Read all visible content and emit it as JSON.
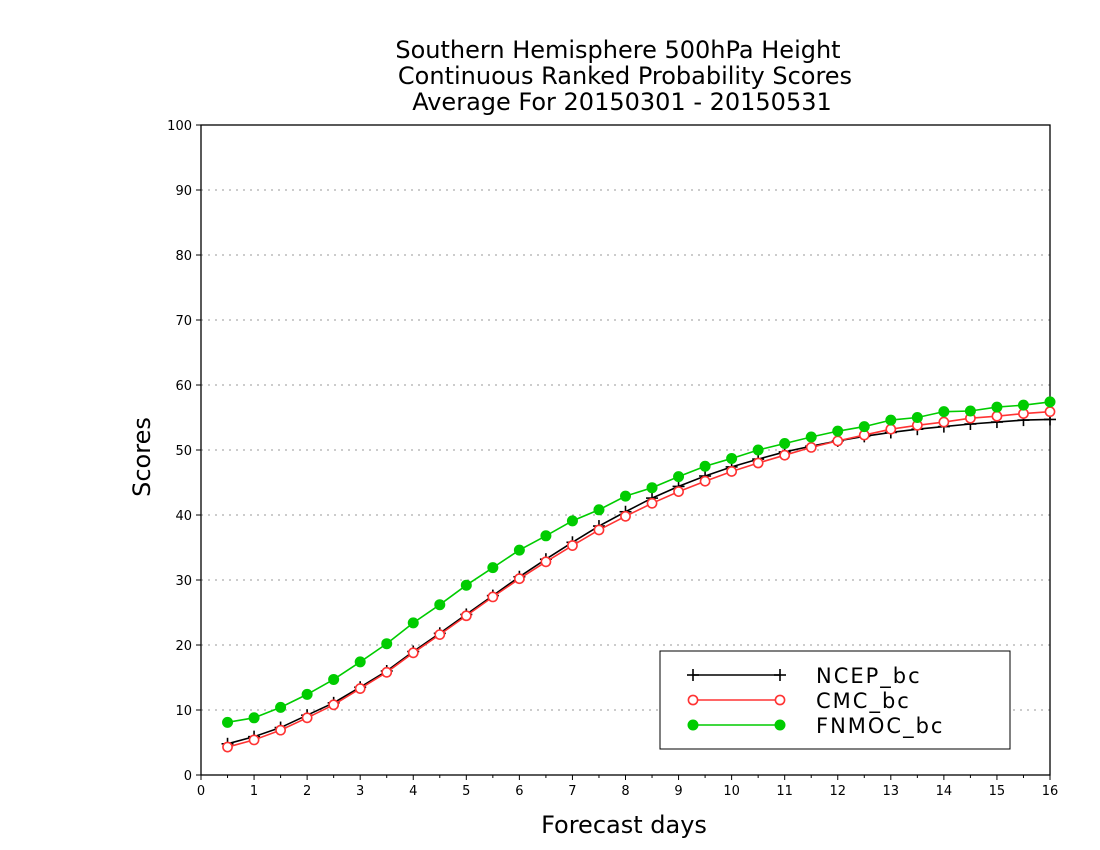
{
  "chart_data": {
    "type": "line",
    "title": [
      "Southern Hemisphere 500hPa Height",
      "Continuous Ranked Probability Scores",
      "Average For 20150301 - 20150531"
    ],
    "xlabel": "Forecast days",
    "ylabel": "Scores",
    "xlim": [
      0,
      16
    ],
    "ylim": [
      0,
      100
    ],
    "xticks": [
      "0",
      "1",
      "2",
      "3",
      "4",
      "5",
      "6",
      "7",
      "8",
      "9",
      "10",
      "11",
      "12",
      "13",
      "14",
      "15",
      "16"
    ],
    "yticks": [
      "0",
      "10",
      "20",
      "30",
      "40",
      "50",
      "60",
      "70",
      "80",
      "90",
      "100"
    ],
    "grid": "horizontal dotted",
    "legend_position": "bottom-right",
    "x": [
      0.5,
      1,
      1.5,
      2,
      2.5,
      3,
      3.5,
      4,
      4.5,
      5,
      5.5,
      6,
      6.5,
      7,
      7.5,
      8,
      8.5,
      9,
      9.5,
      10,
      10.5,
      11,
      11.5,
      12,
      12.5,
      13,
      13.5,
      14,
      14.5,
      15,
      15.5,
      16
    ],
    "series": [
      {
        "name": "NCEP_bc",
        "color": "#000000",
        "marker": "plus",
        "values": [
          4.8,
          5.9,
          7.3,
          9.2,
          11.1,
          13.5,
          16.0,
          19.0,
          21.8,
          24.7,
          27.6,
          30.5,
          33.2,
          35.8,
          38.3,
          40.5,
          42.6,
          44.4,
          46.0,
          47.4,
          48.6,
          49.7,
          50.6,
          51.4,
          52.1,
          52.7,
          53.2,
          53.6,
          54.0,
          54.3,
          54.6,
          54.7
        ]
      },
      {
        "name": "CMC_bc",
        "color": "#ff3333",
        "marker": "open-circle",
        "values": [
          4.3,
          5.4,
          6.9,
          8.8,
          10.8,
          13.3,
          15.8,
          18.8,
          21.6,
          24.5,
          27.4,
          30.2,
          32.8,
          35.3,
          37.7,
          39.8,
          41.8,
          43.6,
          45.2,
          46.7,
          48.0,
          49.2,
          50.4,
          51.4,
          52.3,
          53.2,
          53.8,
          54.3,
          54.9,
          55.2,
          55.6,
          55.9
        ]
      },
      {
        "name": "FNMOC_bc",
        "color": "#00cc00",
        "marker": "filled-circle",
        "values": [
          8.1,
          8.8,
          10.4,
          12.4,
          14.7,
          17.4,
          20.2,
          23.4,
          26.2,
          29.2,
          31.9,
          34.6,
          36.8,
          39.1,
          40.8,
          42.9,
          44.2,
          45.9,
          47.5,
          48.7,
          50.0,
          51.0,
          52.0,
          52.9,
          53.6,
          54.6,
          55.0,
          55.9,
          56.0,
          56.6,
          56.9,
          57.4
        ]
      }
    ]
  }
}
